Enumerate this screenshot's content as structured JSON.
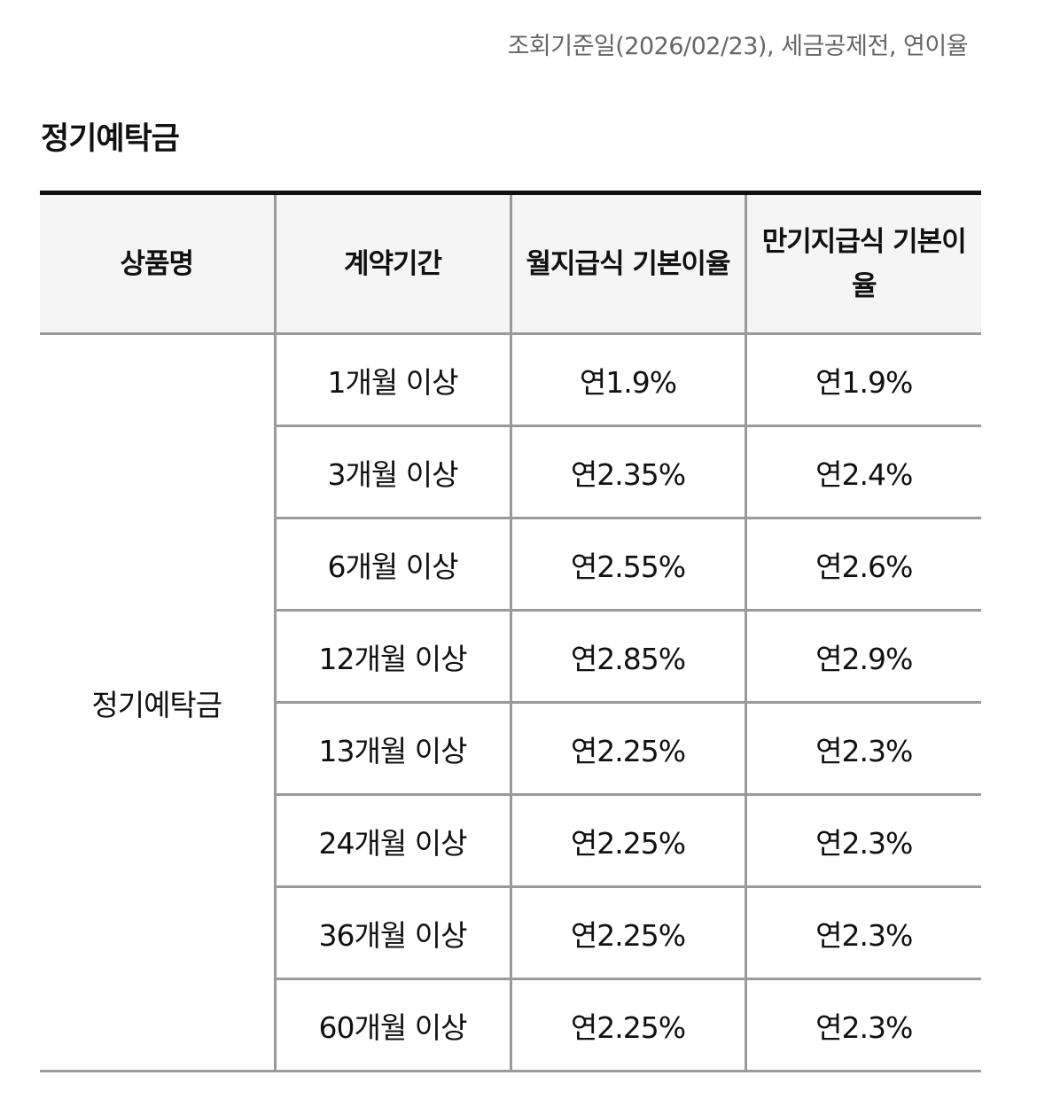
{
  "note": "조회기준일(2026/02/23), 세금공제전, 연이율",
  "section_title": "정기예탁금",
  "table": {
    "headers": {
      "product": "상품명",
      "period": "계약기간",
      "monthly_rate": "월지급식 기본이율",
      "maturity_rate": "만기지급식 기본이율"
    },
    "product_name": "정기예탁금",
    "rows": [
      {
        "period": "1개월 이상",
        "monthly_rate": "연1.9%",
        "maturity_rate": "연1.9%"
      },
      {
        "period": "3개월 이상",
        "monthly_rate": "연2.35%",
        "maturity_rate": "연2.4%"
      },
      {
        "period": "6개월 이상",
        "monthly_rate": "연2.55%",
        "maturity_rate": "연2.6%"
      },
      {
        "period": "12개월 이상",
        "monthly_rate": "연2.85%",
        "maturity_rate": "연2.9%"
      },
      {
        "period": "13개월 이상",
        "monthly_rate": "연2.25%",
        "maturity_rate": "연2.3%"
      },
      {
        "period": "24개월 이상",
        "monthly_rate": "연2.25%",
        "maturity_rate": "연2.3%"
      },
      {
        "period": "36개월 이상",
        "monthly_rate": "연2.25%",
        "maturity_rate": "연2.3%"
      },
      {
        "period": "60개월 이상",
        "monthly_rate": "연2.25%",
        "maturity_rate": "연2.3%"
      }
    ]
  }
}
